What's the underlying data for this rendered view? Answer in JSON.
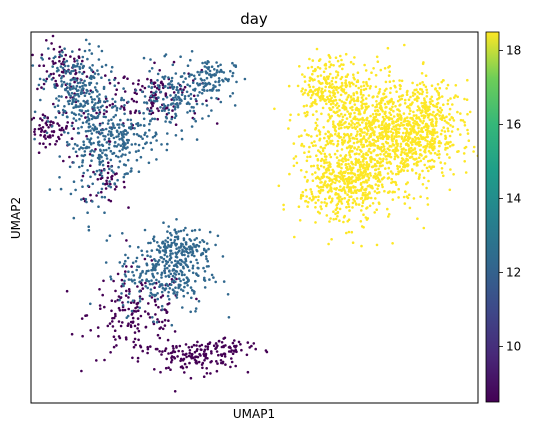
{
  "chart_data": {
    "type": "scatter",
    "title": "day",
    "xlabel": "UMAP1",
    "ylabel": "UMAP2",
    "grid": false,
    "colormap": "viridis",
    "colorbar": {
      "range": [
        8.5,
        18.5
      ],
      "ticks": [
        "10",
        "12",
        "14",
        "16",
        "18"
      ],
      "tick_values": [
        10,
        12,
        14,
        16,
        18
      ]
    },
    "xlim": [
      -12,
      12
    ],
    "ylim": [
      -10,
      10
    ],
    "series": [
      {
        "color_value": 9,
        "color": "#440154",
        "clusters": [
          {
            "cx": -8.8,
            "cy": 5.2,
            "rx": 2.2,
            "ry": 2.9,
            "n": 70
          },
          {
            "cx": -10.4,
            "cy": 8.0,
            "rx": 1.2,
            "ry": 1.3,
            "n": 60
          },
          {
            "cx": -5.3,
            "cy": 6.6,
            "rx": 2.2,
            "ry": 1.4,
            "n": 110
          },
          {
            "cx": -11.0,
            "cy": 4.8,
            "rx": 1.0,
            "ry": 0.7,
            "n": 60
          },
          {
            "cx": -8.0,
            "cy": 1.8,
            "rx": 1.0,
            "ry": 0.9,
            "n": 35
          },
          {
            "cx": -6.3,
            "cy": -5.2,
            "rx": 2.4,
            "ry": 2.2,
            "n": 170
          },
          {
            "cx": -3.5,
            "cy": -7.6,
            "rx": 2.4,
            "ry": 0.8,
            "n": 120
          },
          {
            "cx": -1.5,
            "cy": -7.0,
            "rx": 1.8,
            "ry": 0.5,
            "n": 60
          }
        ]
      },
      {
        "color_value": 12,
        "color": "#31688e",
        "clusters": [
          {
            "cx": -9.6,
            "cy": 7.0,
            "rx": 1.6,
            "ry": 2.0,
            "n": 220
          },
          {
            "cx": -8.5,
            "cy": 4.0,
            "rx": 1.6,
            "ry": 2.6,
            "n": 220
          },
          {
            "cx": -6.8,
            "cy": 4.2,
            "rx": 1.4,
            "ry": 1.4,
            "n": 120
          },
          {
            "cx": -4.3,
            "cy": 6.4,
            "rx": 2.0,
            "ry": 1.6,
            "n": 170
          },
          {
            "cx": -2.4,
            "cy": 7.6,
            "rx": 1.2,
            "ry": 0.9,
            "n": 90
          },
          {
            "cx": -4.8,
            "cy": -3.0,
            "rx": 2.2,
            "ry": 2.0,
            "n": 300
          },
          {
            "cx": -3.8,
            "cy": -1.6,
            "rx": 1.4,
            "ry": 1.1,
            "n": 120
          }
        ]
      },
      {
        "color_value": 18.5,
        "color": "#fde725",
        "clusters": [
          {
            "cx": 5.6,
            "cy": 4.2,
            "rx": 2.8,
            "ry": 3.4,
            "n": 700
          },
          {
            "cx": 7.8,
            "cy": 4.4,
            "rx": 2.8,
            "ry": 2.6,
            "n": 600
          },
          {
            "cx": 4.6,
            "cy": 1.6,
            "rx": 2.0,
            "ry": 1.8,
            "n": 300
          },
          {
            "cx": 9.6,
            "cy": 5.2,
            "rx": 1.4,
            "ry": 1.8,
            "n": 200
          },
          {
            "cx": 4.0,
            "cy": 7.0,
            "rx": 1.4,
            "ry": 1.6,
            "n": 200
          }
        ]
      }
    ]
  }
}
